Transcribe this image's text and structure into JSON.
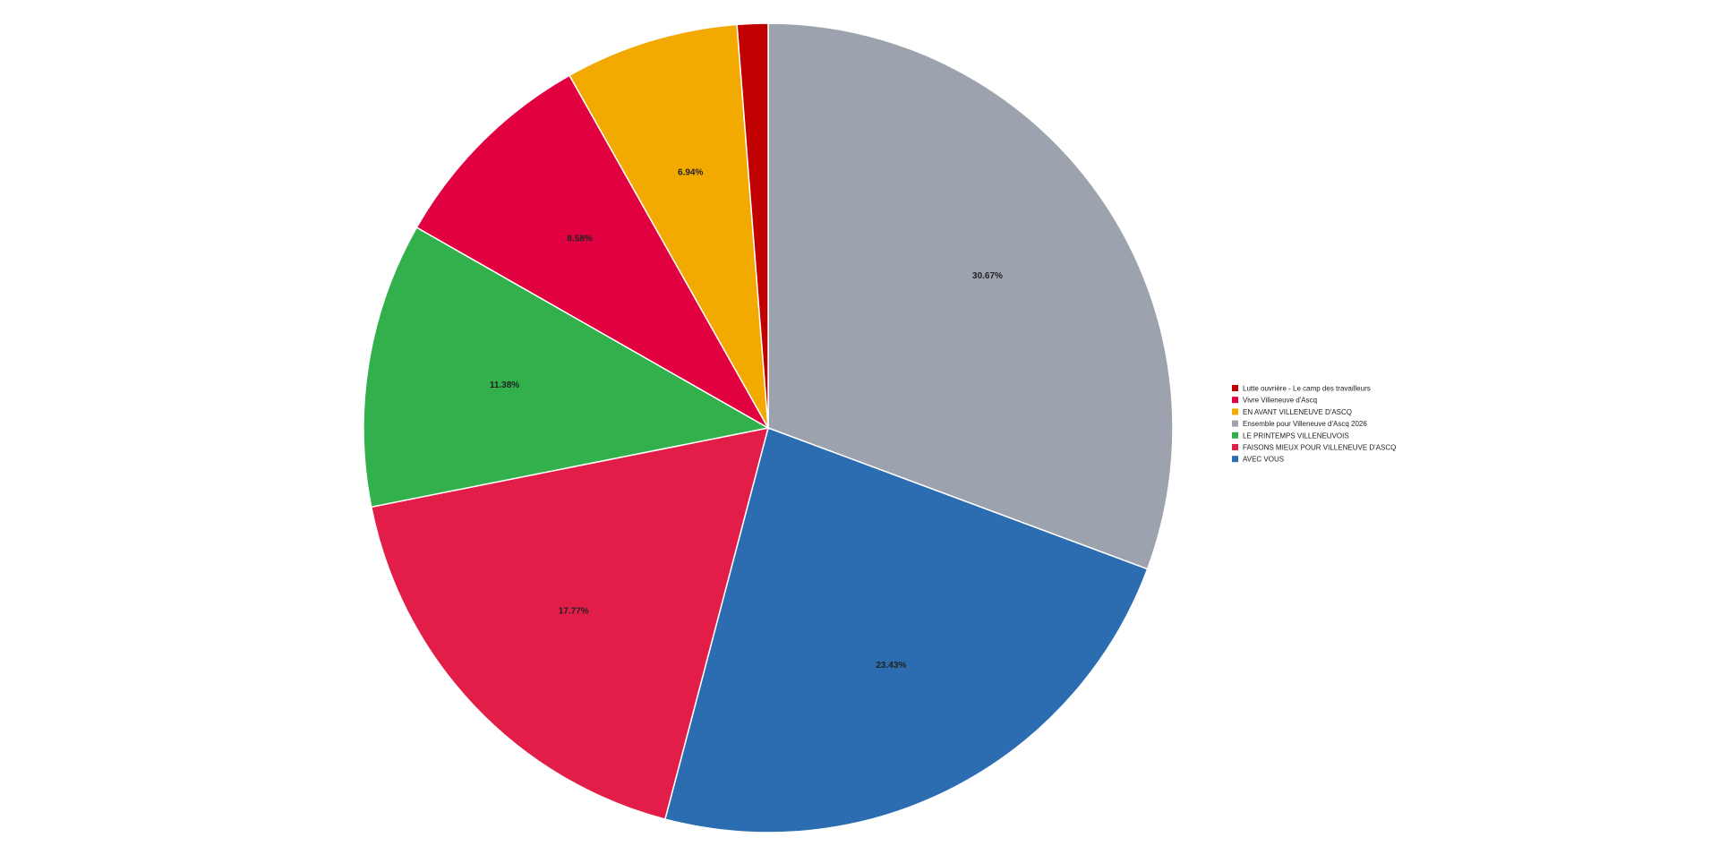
{
  "chart_data": {
    "type": "pie",
    "title": "",
    "start": "top-clockwise",
    "legend_position": "right",
    "slices": [
      {
        "name": "Ensemble pour Villeneuve d'Ascq 2026",
        "value": 30.67,
        "label": "30.67%",
        "color": "#9ca3ae"
      },
      {
        "name": "AVEC VOUS",
        "value": 23.43,
        "label": "23.43%",
        "color": "#2c6cb0"
      },
      {
        "name": "FAISONS MIEUX POUR VILLENEUVE D'ASCQ",
        "value": 17.77,
        "label": "17.77%",
        "color": "#e11d48"
      },
      {
        "name": "LE PRINTEMPS VILLENEUVOIS",
        "value": 11.38,
        "label": "11.38%",
        "color": "#32b04b"
      },
      {
        "name": "Vivre Villeneuve d'Ascq",
        "value": 8.58,
        "label": "8.58%",
        "color": "#e10040"
      },
      {
        "name": "EN AVANT VILLENEUVE D'ASCQ",
        "value": 6.94,
        "label": "6.94%",
        "color": "#f2a900"
      },
      {
        "name": "Lutte ouvrière - Le camp des travailleurs",
        "value": 1.23,
        "label": "",
        "color": "#c00000"
      }
    ],
    "legend": [
      {
        "name": "Lutte ouvrière - Le camp des travailleurs",
        "color": "#c00000"
      },
      {
        "name": "Vivre Villeneuve d'Ascq",
        "color": "#e10040"
      },
      {
        "name": "EN AVANT VILLENEUVE D'ASCQ",
        "color": "#f2a900"
      },
      {
        "name": "Ensemble pour Villeneuve d'Ascq 2026",
        "color": "#9ca3ae"
      },
      {
        "name": "LE PRINTEMPS VILLENEUVOIS",
        "color": "#32b04b"
      },
      {
        "name": "FAISONS MIEUX POUR VILLENEUVE D'ASCQ",
        "color": "#e11d48"
      },
      {
        "name": "AVEC VOUS",
        "color": "#2c6cb0"
      }
    ]
  }
}
